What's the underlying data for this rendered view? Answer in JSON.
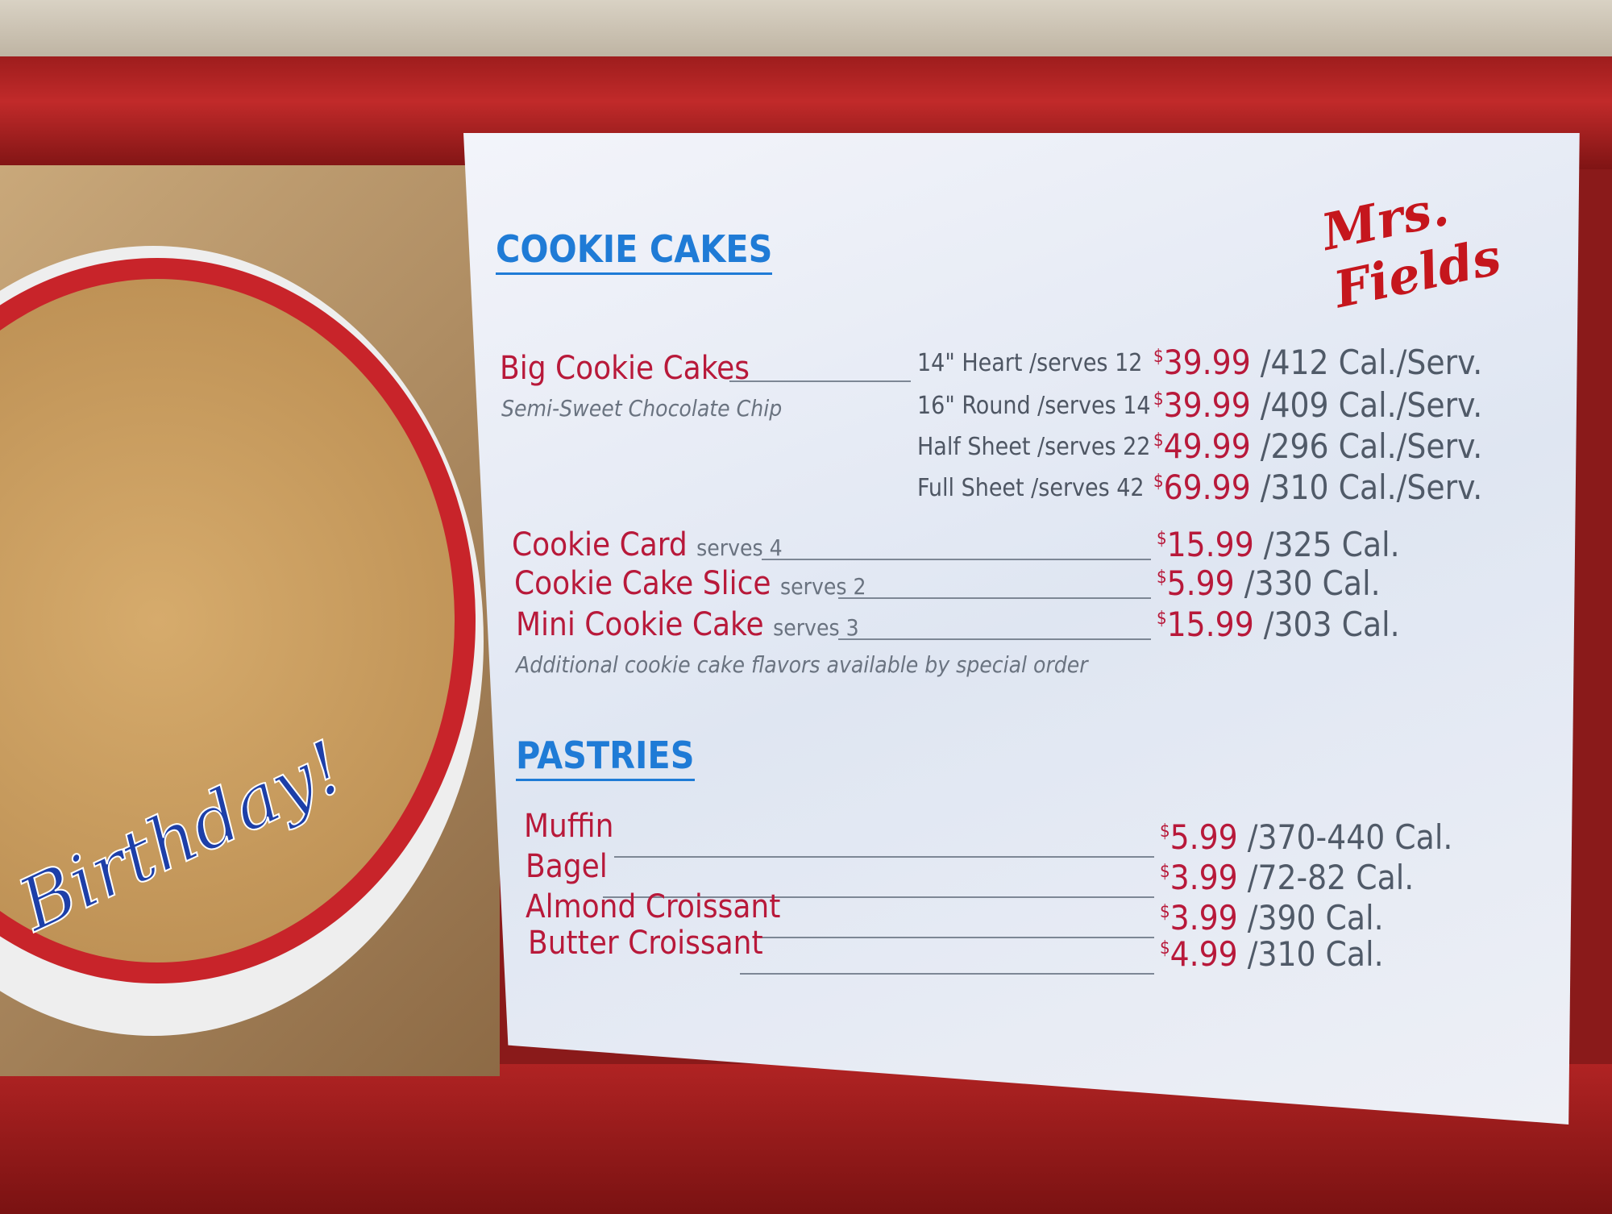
{
  "brand": "Mrs. Fields",
  "photo_text": "Birthday!",
  "cookie_cakes": {
    "heading": "COOKIE CAKES",
    "big": {
      "name": "Big Cookie Cakes",
      "flavor": "Semi-Sweet Chocolate Chip",
      "sizes": [
        {
          "size": "14\" Heart /serves 12",
          "price": "39.99",
          "cal": "/412 Cal./Serv."
        },
        {
          "size": "16\" Round /serves 14",
          "price": "39.99",
          "cal": "/409 Cal./Serv."
        },
        {
          "size": "Half Sheet /serves 22",
          "price": "49.99",
          "cal": "/296 Cal./Serv."
        },
        {
          "size": "Full Sheet /serves 42",
          "price": "69.99",
          "cal": "/310 Cal./Serv."
        }
      ]
    },
    "items": [
      {
        "name": "Cookie Card",
        "serves": "serves 4",
        "price": "15.99",
        "cal": "/325 Cal."
      },
      {
        "name": "Cookie Cake Slice",
        "serves": "serves 2",
        "price": "5.99",
        "cal": "/330 Cal."
      },
      {
        "name": "Mini Cookie Cake",
        "serves": "serves 3",
        "price": "15.99",
        "cal": "/303 Cal."
      }
    ],
    "note": "Additional cookie cake flavors available by special order"
  },
  "pastries": {
    "heading": "PASTRIES",
    "items": [
      {
        "name": "Muffin",
        "price": "5.99",
        "cal": "/370-440 Cal."
      },
      {
        "name": "Bagel",
        "price": "3.99",
        "cal": "/72-82 Cal."
      },
      {
        "name": "Almond Croissant",
        "price": "3.99",
        "cal": "/390 Cal."
      },
      {
        "name": "Butter Croissant",
        "price": "4.99",
        "cal": "/310 Cal."
      }
    ]
  },
  "currency": "$",
  "colors": {
    "heading": "#1f7bd6",
    "price": "#b8193a",
    "frame": "#b02323"
  }
}
